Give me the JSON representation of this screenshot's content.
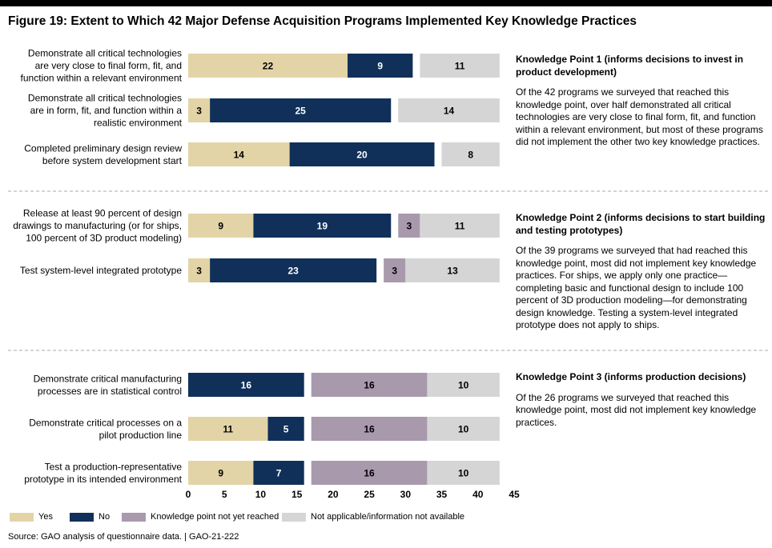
{
  "figure_title": "Figure 19: Extent to Which 42 Major Defense Acquisition Programs Implemented Key Knowledge Practices",
  "colors": {
    "yes": "#e3d4a7",
    "no": "#10305a",
    "not_reached": "#a999ad",
    "na": "#d5d5d5",
    "divider": "#bbbbbb"
  },
  "chart_data": {
    "type": "bar",
    "orientation": "horizontal",
    "stacked": true,
    "xlim": [
      0,
      45
    ],
    "x_ticks": [
      "0",
      "5",
      "10",
      "15",
      "20",
      "25",
      "30",
      "35",
      "40",
      "45"
    ],
    "series_names": [
      "Yes",
      "No",
      "Knowledge point not yet reached",
      "Not applicable/information not available"
    ],
    "groups": [
      {
        "rows": [
          {
            "label": [
              "Demonstrate all critical technologies",
              "are very close to final form, fit, and",
              "function within a relevant environment"
            ],
            "yes": 22,
            "no": 9,
            "not_reached": 0,
            "na": 11
          },
          {
            "label": [
              "Demonstrate all critical technologies",
              "are in form, fit, and function within a",
              "realistic environment"
            ],
            "yes": 3,
            "no": 25,
            "not_reached": 0,
            "na": 14
          },
          {
            "label": [
              "Completed preliminary design review",
              "before system development start"
            ],
            "yes": 14,
            "no": 20,
            "not_reached": 0,
            "na": 8
          }
        ]
      },
      {
        "rows": [
          {
            "label": [
              "Release at least 90 percent of design",
              "drawings to manufacturing (or for ships,",
              "100 percent of 3D product modeling)"
            ],
            "yes": 9,
            "no": 19,
            "not_reached": 3,
            "na": 11
          },
          {
            "label": [
              "Test system-level integrated prototype"
            ],
            "yes": 3,
            "no": 23,
            "not_reached": 3,
            "na": 13
          }
        ]
      },
      {
        "rows": [
          {
            "label": [
              "Demonstrate critical manufacturing",
              "processes are in statistical control"
            ],
            "yes": 0,
            "no": 16,
            "not_reached": 16,
            "na": 10
          },
          {
            "label": [
              "Demonstrate critical processes on a",
              "pilot production line"
            ],
            "yes": 11,
            "no": 5,
            "not_reached": 16,
            "na": 10
          },
          {
            "label": [
              "Test a production-representative",
              "prototype in its intended environment"
            ],
            "yes": 9,
            "no": 7,
            "not_reached": 16,
            "na": 10
          }
        ]
      }
    ]
  },
  "knowledge_points": [
    {
      "heading": "Knowledge Point 1 (informs decisions to invest in product development)",
      "body": "Of the 42 programs we surveyed that reached this knowledge point, over half demonstrated all critical technologies are very close to final form, fit, and function within a relevant environment, but most of these programs did not implement the other two key knowledge practices."
    },
    {
      "heading": "Knowledge Point 2 (informs decisions to start building and testing prototypes)",
      "body": "Of the 39 programs we surveyed that had reached this knowledge point, most did not implement key knowledge practices. For ships, we apply only one practice—completing basic and functional design to include 100 percent of 3D production modeling—for demonstrating design knowledge. Testing a system-level integrated prototype does not apply to ships."
    },
    {
      "heading": "Knowledge Point 3 (informs production decisions)",
      "body": "Of the 26 programs we surveyed that reached this knowledge point, most did not implement key knowledge practices."
    }
  ],
  "legend": {
    "yes": "Yes",
    "no": "No",
    "not_reached": "Knowledge point not yet reached",
    "na": "Not applicable/information not available"
  },
  "source": "Source: GAO analysis of questionnaire data.  |  GAO-21-222"
}
